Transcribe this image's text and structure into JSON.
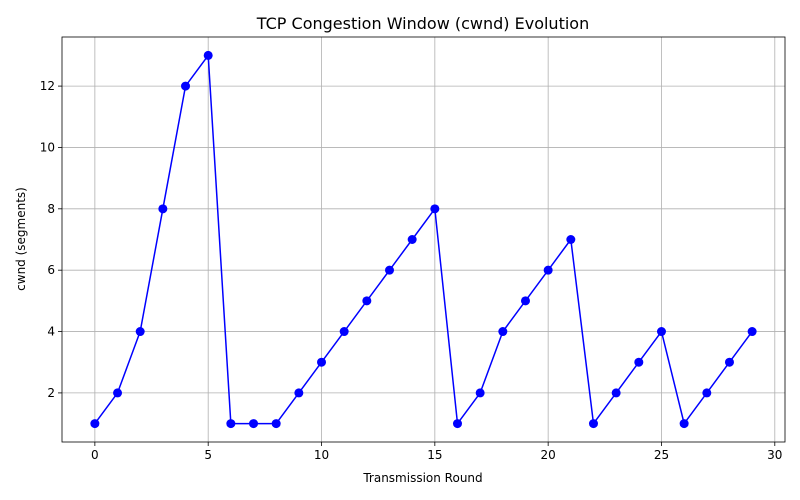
{
  "chart_data": {
    "type": "line",
    "title": "TCP Congestion Window (cwnd) Evolution",
    "xlabel": "Transmission Round",
    "ylabel": "cwnd (segments)",
    "xlim": [
      -1.45,
      30.45
    ],
    "ylim": [
      0.4,
      13.6
    ],
    "xticks": [
      0,
      5,
      10,
      15,
      20,
      25,
      30
    ],
    "yticks": [
      2,
      4,
      6,
      8,
      10,
      12
    ],
    "grid": true,
    "series": [
      {
        "color": "#0000ff",
        "marker": "circle",
        "x": [
          0,
          1,
          2,
          3,
          4,
          5,
          6,
          7,
          8,
          9,
          10,
          11,
          12,
          13,
          14,
          15,
          16,
          17,
          18,
          19,
          20,
          21,
          22,
          23,
          24,
          25,
          26,
          27,
          28,
          29
        ],
        "y": [
          1,
          2,
          4,
          8,
          12,
          13,
          1,
          1,
          1,
          2,
          3,
          4,
          5,
          6,
          7,
          8,
          1,
          2,
          4,
          5,
          6,
          7,
          1,
          2,
          3,
          4,
          1,
          2,
          3,
          4
        ]
      }
    ]
  }
}
